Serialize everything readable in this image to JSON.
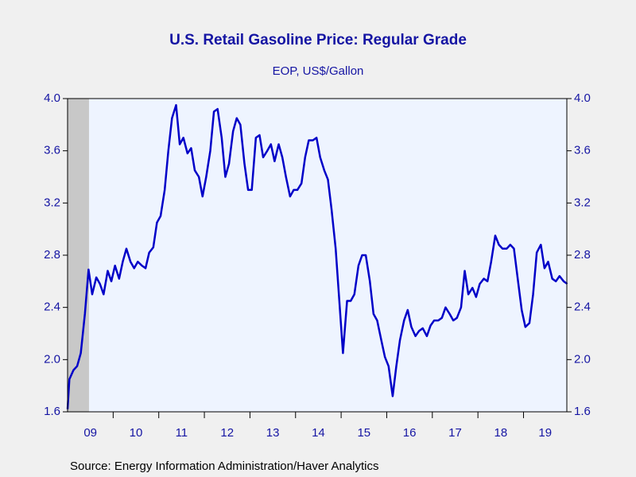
{
  "chart_data": {
    "type": "line",
    "title": "U.S. Retail Gasoline Price: Regular Grade",
    "subtitle": "EOP, US$/Gallon",
    "source": "Source:  Energy Information Administration/Haver Analytics",
    "color": "#0000c8",
    "recession": [
      2009,
      2009.47
    ],
    "xlim": [
      2009,
      2019.95
    ],
    "xticks": [
      {
        "value": 2009,
        "label": "09"
      },
      {
        "value": 2010,
        "label": "10"
      },
      {
        "value": 2011,
        "label": "11"
      },
      {
        "value": 2012,
        "label": "12"
      },
      {
        "value": 2013,
        "label": "13"
      },
      {
        "value": 2014,
        "label": "14"
      },
      {
        "value": 2015,
        "label": "15"
      },
      {
        "value": 2016,
        "label": "16"
      },
      {
        "value": 2017,
        "label": "17"
      },
      {
        "value": 2018,
        "label": "18"
      },
      {
        "value": 2019,
        "label": "19"
      }
    ],
    "ylim": [
      1.6,
      4
    ],
    "yticks": [
      1.6,
      {
        "value": 2,
        "label": "2.0"
      },
      2.4,
      2.8,
      3.2,
      3.6,
      {
        "value": 4,
        "label": "4.0"
      }
    ],
    "y2lim": [
      1.6,
      4
    ],
    "y2ticks": [
      1.6,
      {
        "value": 2,
        "label": "2.0"
      },
      2.4,
      2.8,
      3.2,
      3.6,
      {
        "value": 4,
        "label": "4.0"
      }
    ],
    "x": [
      2009,
      2009.04,
      2009.13,
      2009.21,
      2009.29,
      2009.38,
      2009.46,
      2009.54,
      2009.63,
      2009.71,
      2009.79,
      2009.88,
      2009.96,
      2010.04,
      2010.13,
      2010.21,
      2010.29,
      2010.38,
      2010.46,
      2010.54,
      2010.63,
      2010.71,
      2010.79,
      2010.88,
      2010.96,
      2011.04,
      2011.13,
      2011.21,
      2011.29,
      2011.38,
      2011.46,
      2011.54,
      2011.63,
      2011.71,
      2011.79,
      2011.88,
      2011.96,
      2012.04,
      2012.13,
      2012.21,
      2012.29,
      2012.38,
      2012.46,
      2012.54,
      2012.63,
      2012.71,
      2012.79,
      2012.88,
      2012.96,
      2013.04,
      2013.13,
      2013.21,
      2013.29,
      2013.38,
      2013.46,
      2013.54,
      2013.63,
      2013.71,
      2013.79,
      2013.88,
      2013.96,
      2014.04,
      2014.13,
      2014.21,
      2014.29,
      2014.38,
      2014.46,
      2014.54,
      2014.63,
      2014.71,
      2014.79,
      2014.88,
      2014.96,
      2015.04,
      2015.13,
      2015.21,
      2015.29,
      2015.38,
      2015.46,
      2015.54,
      2015.63,
      2015.71,
      2015.79,
      2015.88,
      2015.96,
      2016.04,
      2016.13,
      2016.21,
      2016.29,
      2016.38,
      2016.46,
      2016.54,
      2016.63,
      2016.71,
      2016.79,
      2016.88,
      2016.96,
      2017.04,
      2017.13,
      2017.21,
      2017.29,
      2017.38,
      2017.46,
      2017.54,
      2017.63,
      2017.71,
      2017.79,
      2017.88,
      2017.96,
      2018.04,
      2018.13,
      2018.21,
      2018.29,
      2018.38,
      2018.46,
      2018.54,
      2018.63,
      2018.71,
      2018.79,
      2018.88,
      2018.96,
      2019.04,
      2019.13,
      2019.21,
      2019.29,
      2019.38,
      2019.46,
      2019.54,
      2019.63,
      2019.71,
      2019.79,
      2019.88,
      2019.96
    ],
    "values": [
      1.62,
      1.85,
      1.92,
      1.95,
      2.05,
      2.35,
      2.69,
      2.5,
      2.63,
      2.58,
      2.5,
      2.68,
      2.6,
      2.72,
      2.62,
      2.75,
      2.85,
      2.75,
      2.7,
      2.75,
      2.72,
      2.7,
      2.82,
      2.86,
      3.05,
      3.1,
      3.3,
      3.6,
      3.85,
      3.95,
      3.65,
      3.7,
      3.58,
      3.62,
      3.45,
      3.4,
      3.25,
      3.4,
      3.6,
      3.9,
      3.92,
      3.7,
      3.4,
      3.5,
      3.75,
      3.85,
      3.8,
      3.5,
      3.3,
      3.3,
      3.7,
      3.72,
      3.55,
      3.6,
      3.65,
      3.52,
      3.65,
      3.55,
      3.4,
      3.25,
      3.3,
      3.3,
      3.35,
      3.55,
      3.68,
      3.68,
      3.7,
      3.55,
      3.45,
      3.38,
      3.15,
      2.85,
      2.45,
      2.05,
      2.45,
      2.45,
      2.5,
      2.72,
      2.8,
      2.8,
      2.6,
      2.35,
      2.3,
      2.15,
      2.02,
      1.95,
      1.72,
      1.95,
      2.15,
      2.3,
      2.38,
      2.25,
      2.18,
      2.22,
      2.24,
      2.18,
      2.26,
      2.3,
      2.3,
      2.32,
      2.4,
      2.35,
      2.3,
      2.32,
      2.4,
      2.68,
      2.5,
      2.55,
      2.48,
      2.58,
      2.62,
      2.6,
      2.75,
      2.95,
      2.88,
      2.85,
      2.85,
      2.88,
      2.85,
      2.6,
      2.38,
      2.25,
      2.28,
      2.5,
      2.82,
      2.88,
      2.7,
      2.75,
      2.62,
      2.6,
      2.64,
      2.6,
      2.58
    ]
  }
}
